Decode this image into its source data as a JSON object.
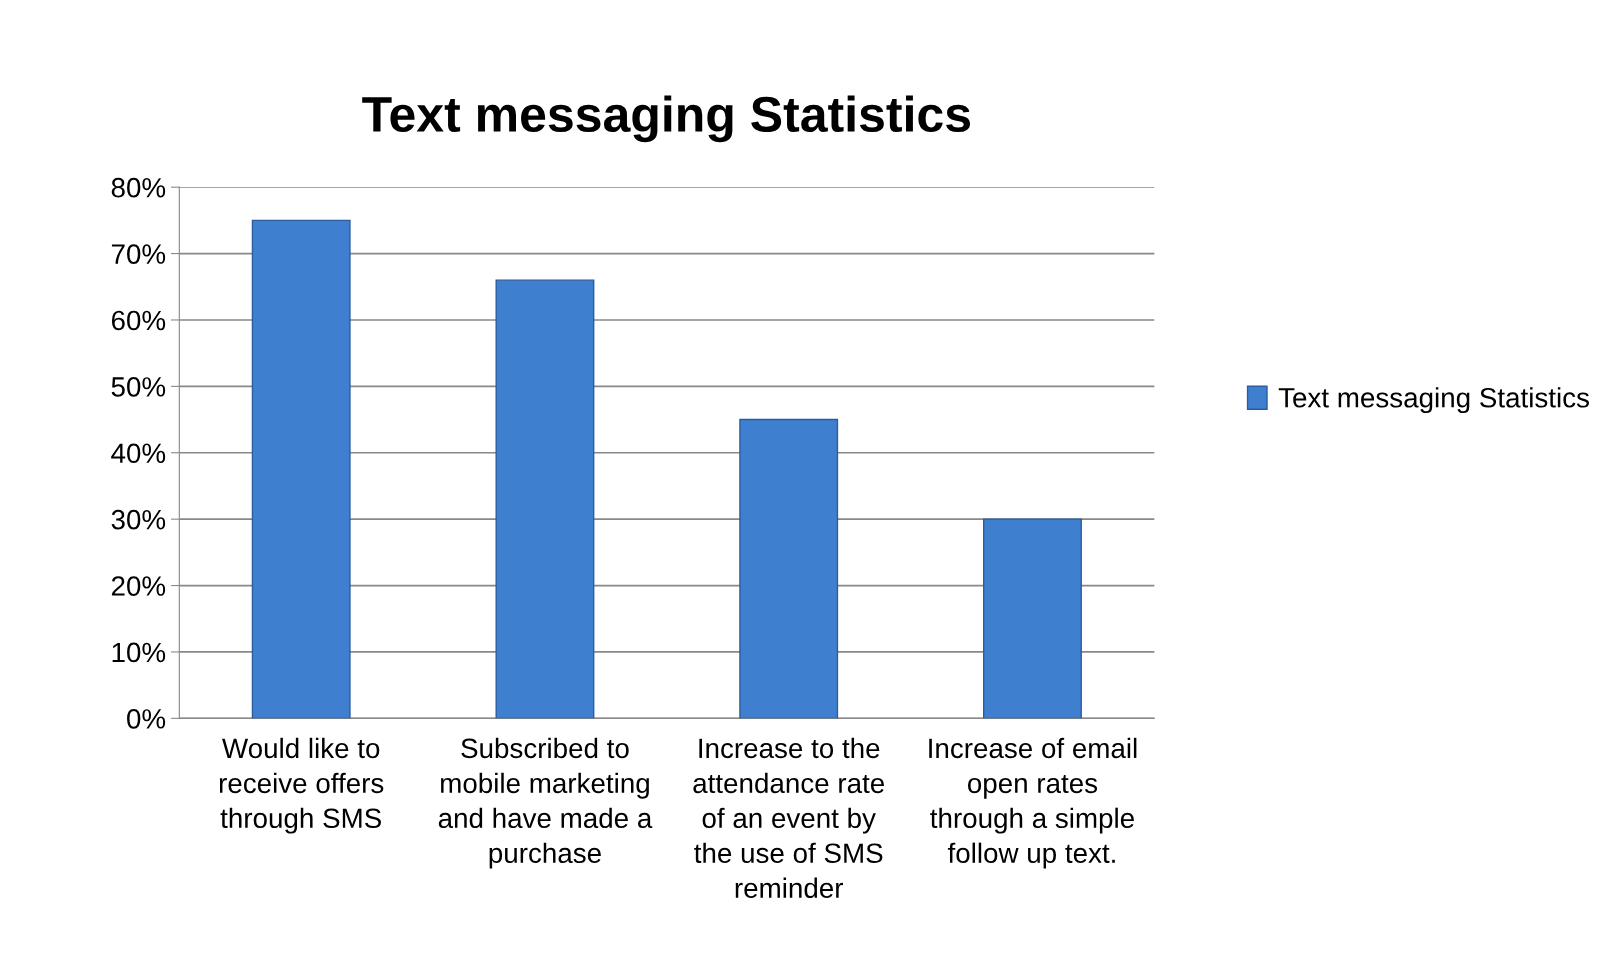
{
  "chart_data": {
    "type": "bar",
    "title": "Text messaging Statistics",
    "categories": [
      "Would like to\nreceive offers\nthrough SMS",
      "Subscribed to\nmobile marketing\nand have made a\npurchase",
      "Increase to the\nattendance rate\nof an event by\nthe use of SMS\nreminder",
      "Increase of email\nopen rates\nthrough a simple\nfollow up text."
    ],
    "series": [
      {
        "name": "Text messaging Statistics",
        "color": "#3f7fd0",
        "values": [
          75,
          66,
          45,
          30
        ]
      }
    ],
    "ylim": [
      0,
      80
    ],
    "yticks": [
      {
        "value": 0,
        "label": "0%"
      },
      {
        "value": 10,
        "label": "10%"
      },
      {
        "value": 20,
        "label": "20%"
      },
      {
        "value": 30,
        "label": "30%"
      },
      {
        "value": 40,
        "label": "40%"
      },
      {
        "value": 50,
        "label": "50%"
      },
      {
        "value": 60,
        "label": "60%"
      },
      {
        "value": 70,
        "label": "70%"
      },
      {
        "value": 80,
        "label": "80%"
      }
    ],
    "grid": "y",
    "legend": "right"
  }
}
